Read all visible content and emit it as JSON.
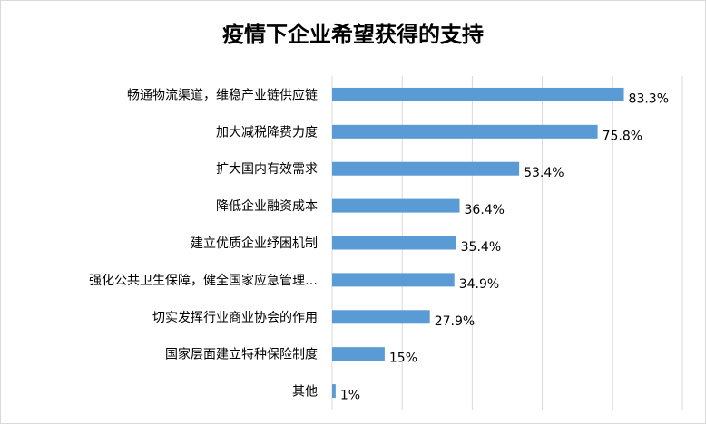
{
  "chart_data": {
    "type": "bar",
    "orientation": "horizontal",
    "title": "疫情下企业希望获得的支持",
    "xlabel": "",
    "ylabel": "",
    "xlim": [
      0,
      100
    ],
    "grid": true,
    "legend": "none",
    "bar_color": "#5b9bd5",
    "categories": [
      "畅通物流渠道，维稳产业链供应链",
      "加大减税降费力度",
      "扩大国内有效需求",
      "降低企业融资成本",
      "建立优质企业纾困机制",
      "强化公共卫生保障，健全国家应急管理…",
      "切实发挥行业商业协会的作用",
      "国家层面建立特种保险制度",
      "其他"
    ],
    "values": [
      83.3,
      75.8,
      53.4,
      36.4,
      35.4,
      34.9,
      27.9,
      15,
      1
    ],
    "value_labels": [
      "83.3%",
      "75.8%",
      "53.4%",
      "36.4%",
      "35.4%",
      "34.9%",
      "27.9%",
      "15%",
      "1%"
    ]
  }
}
